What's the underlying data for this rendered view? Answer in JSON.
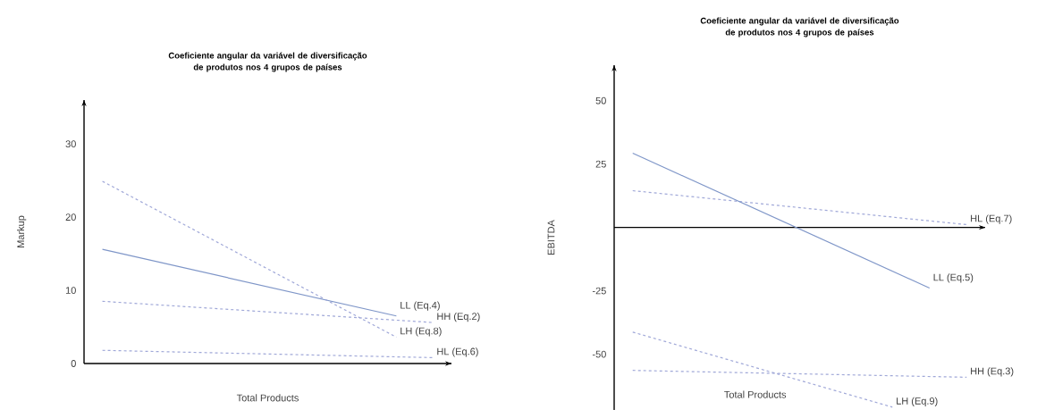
{
  "chart_data": [
    {
      "type": "line",
      "title": "Coeficiente angular da variável  de diversificação de produtos nos 4 grupos de países",
      "xlabel": "Total Products",
      "ylabel": "Markup",
      "categories": [
        null,
        null,
        null,
        null,
        null,
        null,
        null,
        null,
        null,
        null
      ],
      "ylim": [
        0,
        36
      ],
      "yticks": [
        0,
        10,
        20,
        30
      ],
      "tick_labels": "y",
      "series": [
        {
          "name": "LL (Eq.4)",
          "color": "#7f96c8",
          "line_style": "solid",
          "values": [
            15.6,
            null,
            null,
            null,
            null,
            null,
            null,
            null,
            6.5,
            null
          ]
        },
        {
          "name": "HH (Eq.2)",
          "color": "#a0a8d8",
          "line_style": "dashed",
          "values": [
            8.5,
            null,
            null,
            null,
            null,
            null,
            null,
            null,
            null,
            5.6
          ]
        },
        {
          "name": "LH (Eq.8)",
          "color": "#a0a8d8",
          "line_style": "dashed",
          "values": [
            24.9,
            null,
            null,
            null,
            null,
            null,
            null,
            null,
            3.6,
            null
          ]
        },
        {
          "name": "HL (Eq.6)",
          "color": "#a0a8d8",
          "line_style": "dashed",
          "values": [
            1.8,
            null,
            null,
            null,
            null,
            null,
            null,
            null,
            null,
            0.8
          ]
        }
      ]
    },
    {
      "type": "line",
      "title": "Coeficiente angular da variável  de diversificação de produtos nos 4 grupos de países",
      "xlabel": "Total Products",
      "ylabel": "EBITDA",
      "categories": [
        null,
        null,
        null,
        null,
        null,
        null,
        null,
        null,
        null,
        null
      ],
      "ylim": [
        -72,
        64
      ],
      "yticks": [
        -50,
        -25,
        25,
        50
      ],
      "tick_labels": "y",
      "series": [
        {
          "name": "HL (Eq.7)",
          "color": "#a0a8d8",
          "line_style": "dashed",
          "values": [
            14.5,
            null,
            null,
            null,
            null,
            null,
            null,
            null,
            null,
            1.1
          ]
        },
        {
          "name": "LL (Eq.5)",
          "color": "#7f96c8",
          "line_style": "solid",
          "values": [
            29.3,
            null,
            null,
            null,
            null,
            null,
            null,
            null,
            -23.9,
            null
          ]
        },
        {
          "name": "HH (Eq.3)",
          "color": "#a0a8d8",
          "line_style": "dashed",
          "values": [
            -56.4,
            null,
            null,
            null,
            null,
            null,
            null,
            null,
            null,
            -59.1
          ]
        },
        {
          "name": "LH (Eq.9)",
          "color": "#a0a8d8",
          "line_style": "dashed",
          "values": [
            -41.3,
            null,
            null,
            null,
            null,
            null,
            null,
            -70.9,
            null,
            null
          ]
        }
      ]
    }
  ]
}
